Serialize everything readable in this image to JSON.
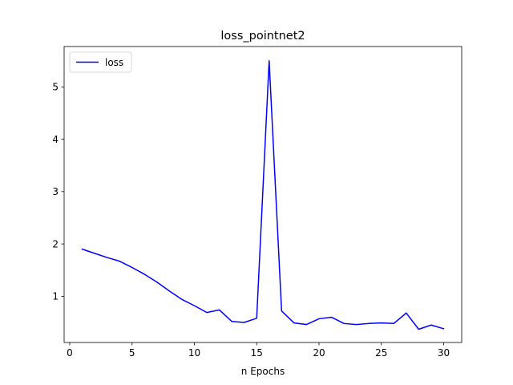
{
  "chart_data": {
    "type": "line",
    "title": "loss_pointnet2",
    "xlabel": "n Epochs",
    "ylabel": "",
    "xlim": [
      -0.45,
      31.45
    ],
    "ylim": [
      0.117,
      5.771
    ],
    "x_ticks": [
      0,
      5,
      10,
      15,
      20,
      25,
      30
    ],
    "y_ticks": [
      1,
      2,
      3,
      4,
      5
    ],
    "grid": false,
    "legend_position": "top-left",
    "series": [
      {
        "name": "loss",
        "color": "#0000ff",
        "x": [
          1,
          2,
          3,
          4,
          5,
          6,
          7,
          8,
          9,
          10,
          11,
          12,
          13,
          14,
          15,
          16,
          17,
          18,
          19,
          20,
          21,
          22,
          23,
          24,
          25,
          26,
          27,
          28,
          29,
          30
        ],
        "y": [
          1.9,
          1.82,
          1.74,
          1.67,
          1.55,
          1.42,
          1.27,
          1.1,
          0.94,
          0.82,
          0.69,
          0.74,
          0.52,
          0.5,
          0.58,
          5.5,
          0.72,
          0.49,
          0.46,
          0.57,
          0.6,
          0.48,
          0.46,
          0.48,
          0.49,
          0.48,
          0.68,
          0.37,
          0.45,
          0.38
        ]
      }
    ]
  }
}
